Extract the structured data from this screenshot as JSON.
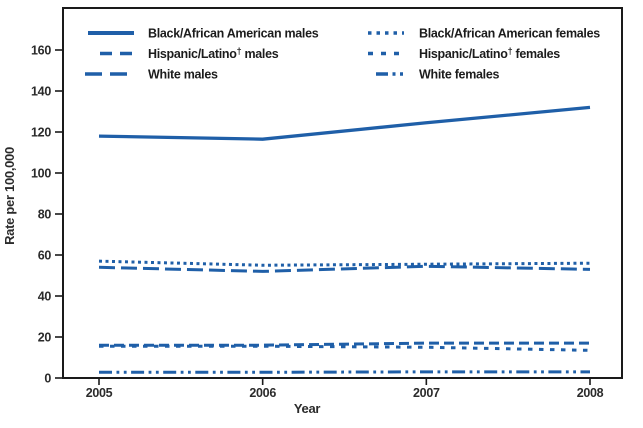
{
  "figure": {
    "background": "#ffffff",
    "axis_color": "#1a1a1a",
    "text_color": "#2b2b2b"
  },
  "chart_data": {
    "type": "line",
    "title": "",
    "xlabel": "Year",
    "ylabel": "Rate per 100,000",
    "x": [
      "2005",
      "2006",
      "2007",
      "2008"
    ],
    "ylim": [
      0,
      180
    ],
    "yticks": [
      0,
      20,
      40,
      60,
      80,
      100,
      120,
      140,
      160
    ],
    "grid": false,
    "legend_position": "top-inside-two-columns",
    "line_color": "#1f5fa8",
    "series": [
      {
        "name": "Black/African American males",
        "dash": "solid",
        "values": [
          118,
          116.5,
          124.5,
          132
        ]
      },
      {
        "name": "Hispanic/Latino† males",
        "dash": "dashed",
        "values": [
          16,
          16,
          17,
          17
        ]
      },
      {
        "name": "White males",
        "dash": "long-dash",
        "values": [
          54,
          52,
          54.5,
          53
        ]
      },
      {
        "name": "Black/African American females",
        "dash": "dotted",
        "values": [
          57,
          55,
          55.5,
          56
        ]
      },
      {
        "name": "Hispanic/Latino† females",
        "dash": "square-dash",
        "values": [
          15.5,
          15.5,
          15,
          13.5
        ]
      },
      {
        "name": "White females",
        "dash": "dash-dot-dot",
        "values": [
          2.8,
          2.8,
          3,
          3
        ]
      }
    ]
  }
}
